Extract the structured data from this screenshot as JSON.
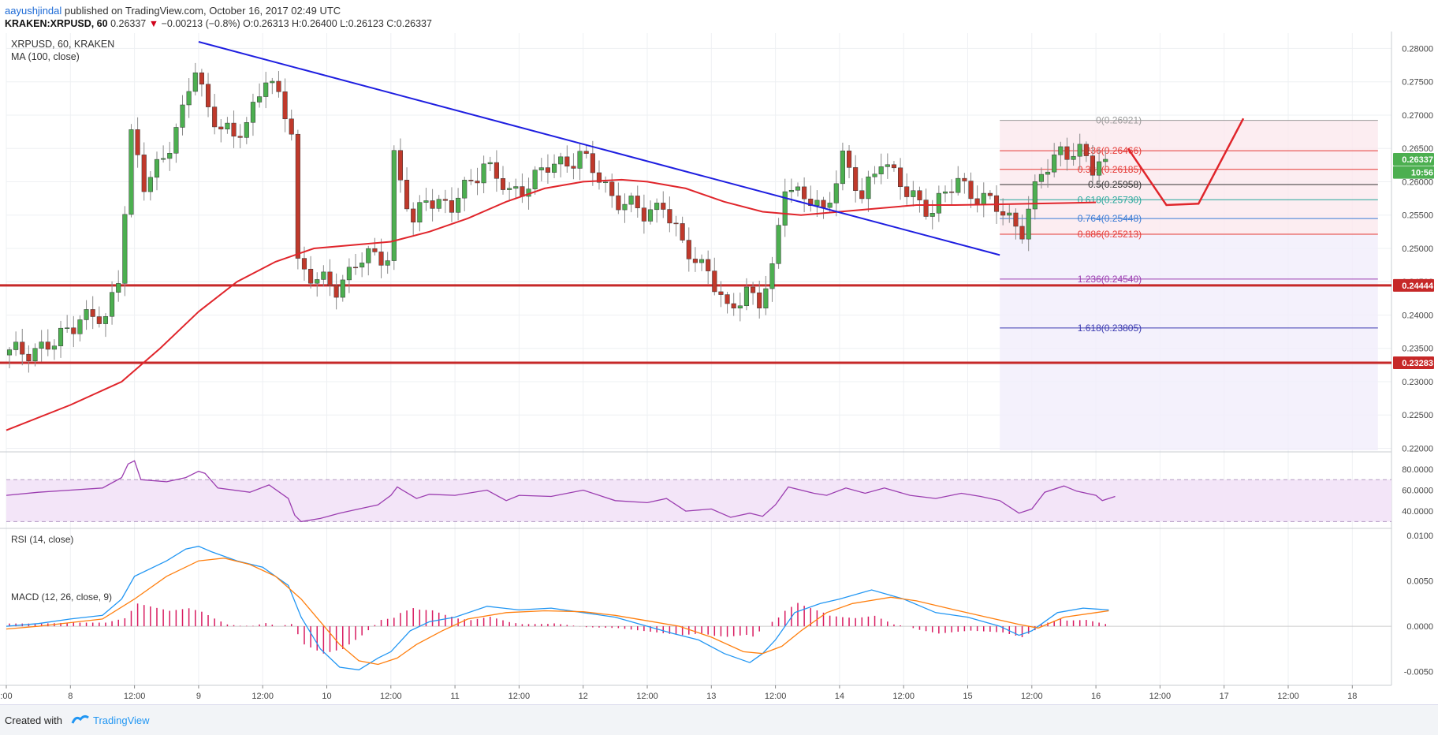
{
  "header": {
    "author": "aayushjindal",
    "published_text": "published on TradingView.com, October 16, 2017 02:49 UTC",
    "symbol": "KRAKEN:XRPUSD, 60",
    "last": "0.26337",
    "change_arrow": "▼",
    "change": "−0.00213 (−0.8%)",
    "ohlc": "O:0.26313 H:0.26400 L:0.26123 C:0.26337"
  },
  "legend": {
    "title": "XRPUSD, 60, KRAKEN",
    "ma": "MA (100, close)",
    "rsi": "RSI (14, close)",
    "macd": "MACD (12, 26, close, 9)"
  },
  "footer": {
    "created": "Created with",
    "brand": "TradingView"
  },
  "colors": {
    "up": "#4caf50",
    "down": "#c0392b",
    "trend": "#1e1ee0",
    "ma": "#e0252b",
    "support": "#c62828",
    "rsi": "#9b3db0",
    "macd": "#2196f3",
    "signal": "#ff7f0e",
    "hist": "#d81b60"
  },
  "chart_data": {
    "type": "candlestick",
    "symbol": "XRPUSD",
    "interval": "60",
    "ylim": [
      0.2197,
      0.2823
    ],
    "y_ticks": [
      "0.28000",
      "0.27500",
      "0.27000",
      "0.26500",
      "0.26000",
      "0.25500",
      "0.25000",
      "0.24500",
      "0.24000",
      "0.23500",
      "0.23000",
      "0.22500",
      "0.22000"
    ],
    "x_ticks": [
      {
        "bar": 0,
        "label": ":00"
      },
      {
        "bar": 10,
        "label": "8"
      },
      {
        "bar": 20,
        "label": "12:00"
      },
      {
        "bar": 30,
        "label": "9"
      },
      {
        "bar": 40,
        "label": "12:00"
      },
      {
        "bar": 50,
        "label": "10"
      },
      {
        "bar": 60,
        "label": "12:00"
      },
      {
        "bar": 70,
        "label": "11"
      },
      {
        "bar": 80,
        "label": "12:00"
      },
      {
        "bar": 90,
        "label": "12"
      },
      {
        "bar": 100,
        "label": "12:00"
      },
      {
        "bar": 110,
        "label": "13"
      },
      {
        "bar": 120,
        "label": "12:00"
      },
      {
        "bar": 130,
        "label": "14"
      },
      {
        "bar": 140,
        "label": "12:00"
      },
      {
        "bar": 150,
        "label": "15"
      },
      {
        "bar": 160,
        "label": "12:00"
      },
      {
        "bar": 170,
        "label": "16"
      },
      {
        "bar": 180,
        "label": "12:00"
      },
      {
        "bar": 190,
        "label": "17"
      },
      {
        "bar": 200,
        "label": "12:00"
      },
      {
        "bar": 210,
        "label": "18"
      }
    ],
    "anchors": [
      [
        0,
        0.234
      ],
      [
        8,
        0.2355
      ],
      [
        12,
        0.24
      ],
      [
        16,
        0.239
      ],
      [
        18,
        0.246
      ],
      [
        20,
        0.267
      ],
      [
        22,
        0.259
      ],
      [
        25,
        0.264
      ],
      [
        28,
        0.27
      ],
      [
        30,
        0.277
      ],
      [
        32,
        0.271
      ],
      [
        36,
        0.266
      ],
      [
        38,
        0.269
      ],
      [
        41,
        0.276
      ],
      [
        45,
        0.268
      ],
      [
        46,
        0.248
      ],
      [
        49,
        0.245
      ],
      [
        52,
        0.244
      ],
      [
        55,
        0.248
      ],
      [
        60,
        0.249
      ],
      [
        61,
        0.264
      ],
      [
        64,
        0.253
      ],
      [
        66,
        0.258
      ],
      [
        70,
        0.256
      ],
      [
        75,
        0.263
      ],
      [
        79,
        0.258
      ],
      [
        85,
        0.262
      ],
      [
        90,
        0.264
      ],
      [
        95,
        0.258
      ],
      [
        100,
        0.255
      ],
      [
        103,
        0.257
      ],
      [
        106,
        0.25
      ],
      [
        110,
        0.247
      ],
      [
        113,
        0.24
      ],
      [
        116,
        0.244
      ],
      [
        118,
        0.242
      ],
      [
        120,
        0.246
      ],
      [
        122,
        0.26
      ],
      [
        126,
        0.257
      ],
      [
        128,
        0.255
      ],
      [
        131,
        0.264
      ],
      [
        134,
        0.257
      ],
      [
        137,
        0.264
      ],
      [
        141,
        0.258
      ],
      [
        145,
        0.256
      ],
      [
        149,
        0.26
      ],
      [
        152,
        0.258
      ],
      [
        155,
        0.256
      ],
      [
        159,
        0.253
      ],
      [
        162,
        0.261
      ],
      [
        165,
        0.265
      ],
      [
        168,
        0.264
      ],
      [
        170,
        0.262
      ],
      [
        171,
        0.2634
      ]
    ],
    "close_last": 0.26337,
    "moving_average": {
      "name": "MA (100, close)",
      "points": [
        [
          0,
          0.2227
        ],
        [
          10,
          0.2265
        ],
        [
          18,
          0.23
        ],
        [
          24,
          0.235
        ],
        [
          30,
          0.2405
        ],
        [
          36,
          0.245
        ],
        [
          42,
          0.248
        ],
        [
          48,
          0.25
        ],
        [
          54,
          0.2505
        ],
        [
          60,
          0.251
        ],
        [
          66,
          0.2525
        ],
        [
          72,
          0.2545
        ],
        [
          78,
          0.257
        ],
        [
          84,
          0.259
        ],
        [
          90,
          0.26
        ],
        [
          96,
          0.2603
        ],
        [
          100,
          0.26
        ],
        [
          106,
          0.259
        ],
        [
          112,
          0.257
        ],
        [
          118,
          0.2555
        ],
        [
          124,
          0.255
        ],
        [
          130,
          0.2555
        ],
        [
          136,
          0.256
        ],
        [
          142,
          0.2565
        ],
        [
          148,
          0.2565
        ],
        [
          154,
          0.2566
        ],
        [
          160,
          0.2567
        ],
        [
          165,
          0.2568
        ],
        [
          170,
          0.2569
        ]
      ]
    },
    "trendline": {
      "from": [
        30,
        0.281
      ],
      "to": [
        155,
        0.249
      ]
    },
    "support_lines": [
      {
        "value": 0.24444,
        "label": "0.24444"
      },
      {
        "value": 0.23283,
        "label": "0.23283"
      }
    ],
    "fib_levels": [
      {
        "ratio": "0",
        "value": 0.26921,
        "label": "0(0.26921)",
        "color": "#999999"
      },
      {
        "ratio": "0.236",
        "value": 0.26466,
        "label": "0.236(0.26466)",
        "color": "#e53935"
      },
      {
        "ratio": "0.382",
        "value": 0.26185,
        "label": "0.382(0.26185)",
        "color": "#e53935"
      },
      {
        "ratio": "0.5",
        "value": 0.25958,
        "label": "0.5(0.25958)",
        "color": "#333333"
      },
      {
        "ratio": "0.618",
        "value": 0.2573,
        "label": "0.618(0.25730)",
        "color": "#26a69a"
      },
      {
        "ratio": "0.764",
        "value": 0.25448,
        "label": "0.764(0.25448)",
        "color": "#3a7bd5"
      },
      {
        "ratio": "0.886",
        "value": 0.25213,
        "label": "0.886(0.25213)",
        "color": "#e53935"
      },
      {
        "ratio": "1.236",
        "value": 0.2454,
        "label": "1.236(0.24540)",
        "color": "#9b3db0"
      },
      {
        "ratio": "1.618",
        "value": 0.23805,
        "label": "1.618(0.23805)",
        "color": "#3a3ab0"
      }
    ],
    "fib_range": {
      "from_bar": 155,
      "to_bar": 214
    },
    "projection_path": [
      [
        175,
        0.265
      ],
      [
        181,
        0.2565
      ],
      [
        186,
        0.2567
      ],
      [
        193,
        0.2695
      ]
    ],
    "price_tags": [
      {
        "value": 0.26337,
        "label": "0.26337",
        "color": "#4caf50"
      },
      {
        "value": 0.2614,
        "label": "10:56",
        "color": "#4caf50"
      },
      {
        "value": 0.24444,
        "label": "0.24444",
        "color": "#c62828"
      },
      {
        "value": 0.23283,
        "label": "0.23283",
        "color": "#c62828"
      }
    ],
    "rsi": {
      "name": "RSI (14, close)",
      "ylim": [
        25,
        95
      ],
      "ticks": [
        "80.0000",
        "60.0000",
        "40.0000"
      ],
      "band": [
        30,
        70
      ],
      "points": [
        [
          0,
          55
        ],
        [
          5,
          58
        ],
        [
          10,
          60
        ],
        [
          15,
          62
        ],
        [
          18,
          72
        ],
        [
          19,
          85
        ],
        [
          20,
          88
        ],
        [
          21,
          70
        ],
        [
          25,
          68
        ],
        [
          28,
          72
        ],
        [
          30,
          78
        ],
        [
          31,
          76
        ],
        [
          33,
          62
        ],
        [
          38,
          58
        ],
        [
          41,
          65
        ],
        [
          44,
          52
        ],
        [
          45,
          36
        ],
        [
          46,
          30
        ],
        [
          49,
          33
        ],
        [
          52,
          38
        ],
        [
          55,
          42
        ],
        [
          58,
          46
        ],
        [
          60,
          55
        ],
        [
          61,
          63
        ],
        [
          64,
          52
        ],
        [
          66,
          56
        ],
        [
          70,
          55
        ],
        [
          75,
          60
        ],
        [
          78,
          50
        ],
        [
          80,
          55
        ],
        [
          85,
          54
        ],
        [
          90,
          60
        ],
        [
          95,
          50
        ],
        [
          100,
          48
        ],
        [
          103,
          52
        ],
        [
          106,
          40
        ],
        [
          110,
          42
        ],
        [
          113,
          34
        ],
        [
          116,
          38
        ],
        [
          118,
          35
        ],
        [
          120,
          46
        ],
        [
          122,
          63
        ],
        [
          126,
          57
        ],
        [
          128,
          55
        ],
        [
          131,
          62
        ],
        [
          134,
          57
        ],
        [
          137,
          62
        ],
        [
          141,
          55
        ],
        [
          145,
          52
        ],
        [
          149,
          57
        ],
        [
          152,
          54
        ],
        [
          155,
          50
        ],
        [
          158,
          38
        ],
        [
          160,
          42
        ],
        [
          162,
          58
        ],
        [
          165,
          64
        ],
        [
          167,
          59
        ],
        [
          170,
          55
        ],
        [
          171,
          50
        ],
        [
          173,
          54
        ]
      ]
    },
    "macd": {
      "name": "MACD (12, 26, close, 9)",
      "ylim": [
        -0.0065,
        0.0106
      ],
      "ticks": [
        "0.0100",
        "0.0050",
        "0.0000",
        "-0.0050"
      ],
      "macd_line": [
        [
          0,
          0.0
        ],
        [
          5,
          0.0003
        ],
        [
          10,
          0.0008
        ],
        [
          15,
          0.0012
        ],
        [
          18,
          0.003
        ],
        [
          20,
          0.0055
        ],
        [
          25,
          0.0072
        ],
        [
          28,
          0.0085
        ],
        [
          30,
          0.0088
        ],
        [
          32,
          0.0082
        ],
        [
          36,
          0.0072
        ],
        [
          40,
          0.0065
        ],
        [
          44,
          0.0045
        ],
        [
          46,
          0.001
        ],
        [
          49,
          -0.0025
        ],
        [
          52,
          -0.0045
        ],
        [
          55,
          -0.0048
        ],
        [
          58,
          -0.0035
        ],
        [
          60,
          -0.0028
        ],
        [
          63,
          -0.0005
        ],
        [
          66,
          0.0005
        ],
        [
          70,
          0.001
        ],
        [
          75,
          0.0022
        ],
        [
          80,
          0.0018
        ],
        [
          85,
          0.002
        ],
        [
          90,
          0.0015
        ],
        [
          95,
          0.001
        ],
        [
          100,
          0.0
        ],
        [
          104,
          -0.0008
        ],
        [
          108,
          -0.0015
        ],
        [
          112,
          -0.003
        ],
        [
          116,
          -0.004
        ],
        [
          118,
          -0.003
        ],
        [
          120,
          -0.0015
        ],
        [
          123,
          0.0015
        ],
        [
          127,
          0.0025
        ],
        [
          130,
          0.003
        ],
        [
          135,
          0.004
        ],
        [
          140,
          0.003
        ],
        [
          145,
          0.0015
        ],
        [
          150,
          0.001
        ],
        [
          155,
          0.0
        ],
        [
          158,
          -0.001
        ],
        [
          160,
          -0.0005
        ],
        [
          164,
          0.0015
        ],
        [
          168,
          0.002
        ],
        [
          172,
          0.0018
        ]
      ],
      "signal_line": [
        [
          0,
          -0.0003
        ],
        [
          5,
          0.0
        ],
        [
          10,
          0.0004
        ],
        [
          15,
          0.0008
        ],
        [
          20,
          0.003
        ],
        [
          25,
          0.0055
        ],
        [
          30,
          0.0072
        ],
        [
          34,
          0.0075
        ],
        [
          38,
          0.0068
        ],
        [
          42,
          0.0055
        ],
        [
          46,
          0.003
        ],
        [
          49,
          0.0005
        ],
        [
          52,
          -0.002
        ],
        [
          55,
          -0.0038
        ],
        [
          58,
          -0.0042
        ],
        [
          61,
          -0.0035
        ],
        [
          64,
          -0.002
        ],
        [
          68,
          -0.0005
        ],
        [
          72,
          0.0008
        ],
        [
          78,
          0.0015
        ],
        [
          84,
          0.0017
        ],
        [
          90,
          0.0016
        ],
        [
          95,
          0.0012
        ],
        [
          100,
          0.0006
        ],
        [
          105,
          0.0
        ],
        [
          110,
          -0.0012
        ],
        [
          115,
          -0.0028
        ],
        [
          118,
          -0.003
        ],
        [
          121,
          -0.0022
        ],
        [
          124,
          -0.0005
        ],
        [
          128,
          0.0015
        ],
        [
          132,
          0.0025
        ],
        [
          138,
          0.0032
        ],
        [
          142,
          0.0028
        ],
        [
          148,
          0.0018
        ],
        [
          153,
          0.001
        ],
        [
          158,
          0.0002
        ],
        [
          161,
          -0.0002
        ],
        [
          165,
          0.001
        ],
        [
          170,
          0.0015
        ],
        [
          172,
          0.0017
        ]
      ]
    }
  }
}
